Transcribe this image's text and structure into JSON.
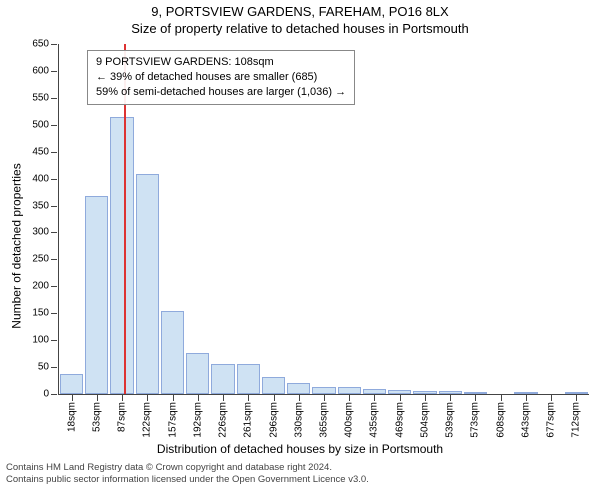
{
  "title_line1": "9, PORTSVIEW GARDENS, FAREHAM, PO16 8LX",
  "title_line2": "Size of property relative to detached houses in Portsmouth",
  "ylabel": "Number of detached properties",
  "xlabel": "Distribution of detached houses by size in Portsmouth",
  "chart": {
    "type": "histogram",
    "background_color": "#ffffff",
    "axis_color": "#444444",
    "bar_fill": "#cfe2f3",
    "bar_stroke": "#8faadc",
    "bar_stroke_width": 1,
    "marker_color": "#dd3333",
    "ymin": 0,
    "ymax": 650,
    "yticks": [
      0,
      50,
      100,
      150,
      200,
      250,
      300,
      350,
      400,
      450,
      500,
      550,
      600,
      650
    ],
    "xtick_labels": [
      "18sqm",
      "53sqm",
      "87sqm",
      "122sqm",
      "157sqm",
      "192sqm",
      "226sqm",
      "261sqm",
      "296sqm",
      "330sqm",
      "365sqm",
      "400sqm",
      "435sqm",
      "469sqm",
      "504sqm",
      "539sqm",
      "573sqm",
      "608sqm",
      "643sqm",
      "677sqm",
      "712sqm"
    ],
    "bars": [
      38,
      368,
      515,
      408,
      155,
      77,
      55,
      55,
      32,
      20,
      13,
      13,
      10,
      8,
      6,
      5,
      4,
      0,
      4,
      0,
      3
    ],
    "marker_bin_index": 2,
    "marker_fraction_in_bin": 0.6
  },
  "annotation": {
    "line1": "9 PORTSVIEW GARDENS: 108sqm",
    "line2": "← 39% of detached houses are smaller (685)",
    "line3": "59% of semi-detached houses are larger (1,036) →",
    "border_color": "#888888",
    "font_size": 11
  },
  "footer": {
    "line1": "Contains HM Land Registry data © Crown copyright and database right 2024.",
    "line2": "Contains public sector information licensed under the Open Government Licence v3.0."
  }
}
